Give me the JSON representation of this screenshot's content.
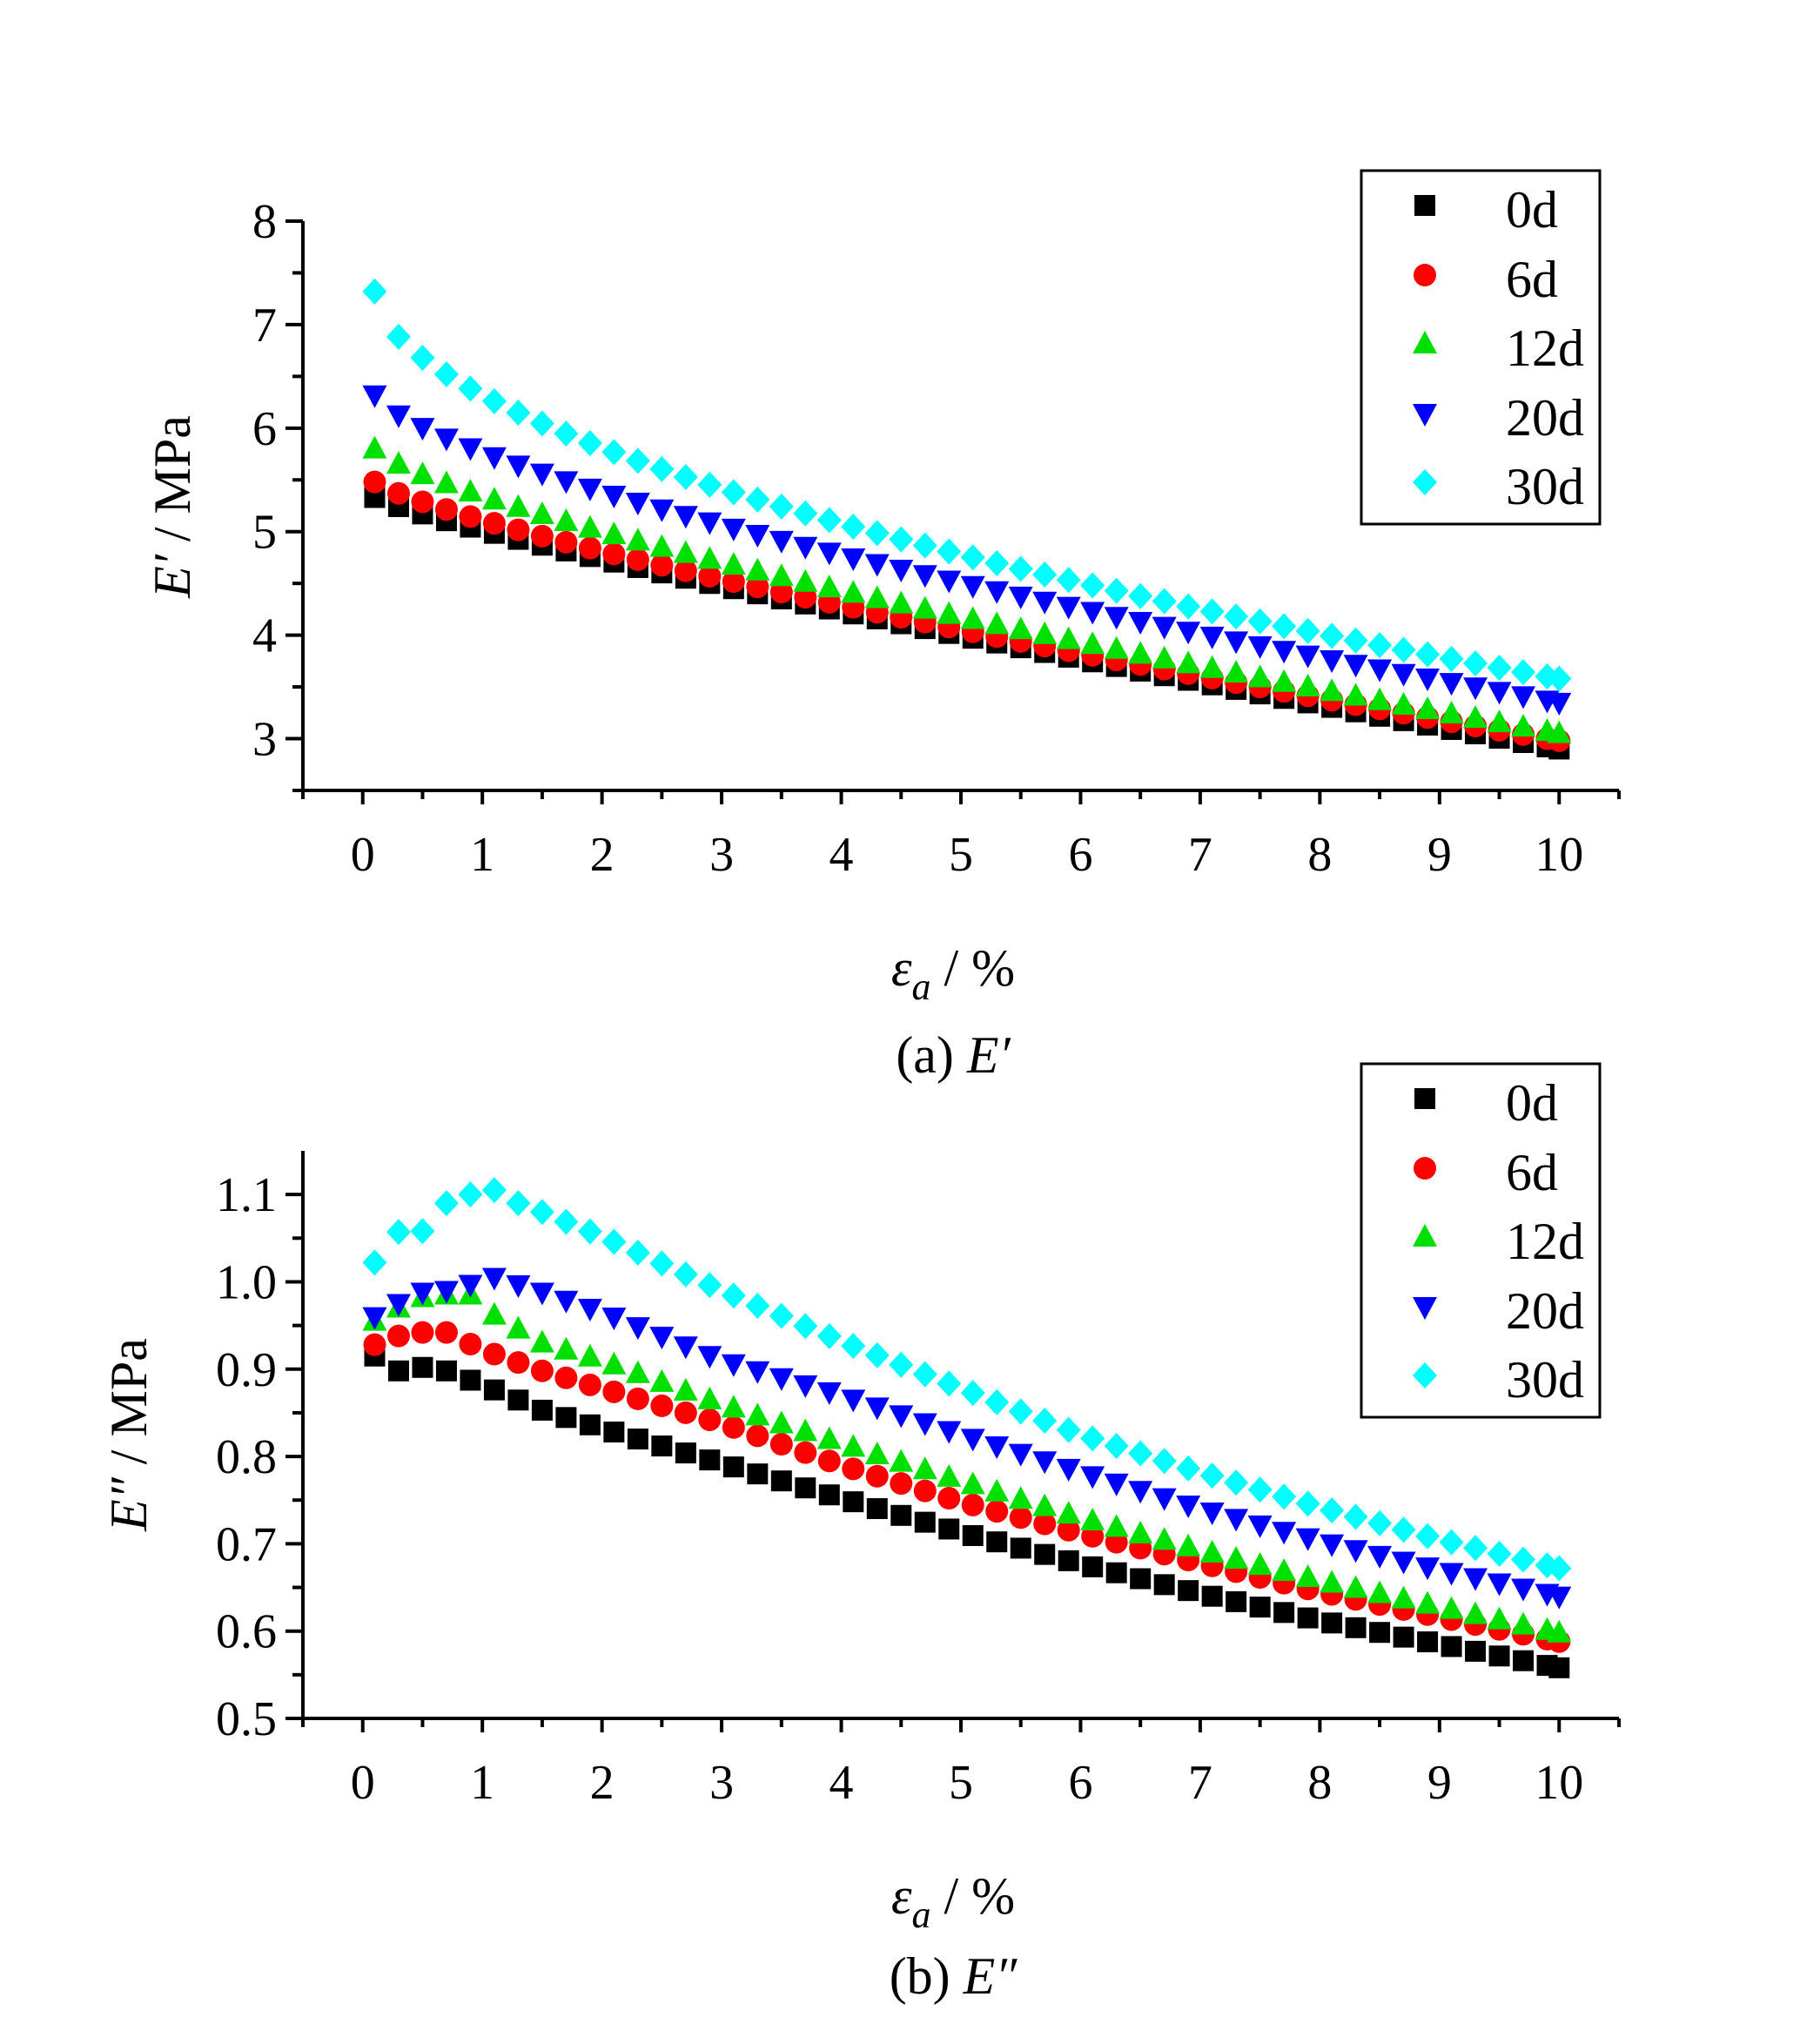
{
  "colors": {
    "0d": "#000000",
    "6d": "#ff0000",
    "12d": "#00e000",
    "20d": "#0000ff",
    "30d": "#00ffff"
  },
  "chart_data": [
    {
      "type": "scatter",
      "caption_prefix": "(a) ",
      "caption_symbol": "E′",
      "xlabel": {
        "symbol": "ε",
        "sub": "a",
        "unit": " / %"
      },
      "ylabel": {
        "symbol": "E′",
        "unit": " / MPa"
      },
      "xlim": [
        -0.5,
        10.5
      ],
      "ylim": [
        2.5,
        8
      ],
      "xticks": [
        0,
        1,
        2,
        3,
        4,
        5,
        6,
        7,
        8,
        9,
        10
      ],
      "yticks": [
        3,
        4,
        5,
        6,
        7,
        8
      ],
      "ytick_labels": [
        "3",
        "4",
        "5",
        "6",
        "7",
        "8"
      ],
      "legend_position": "top-right",
      "x": [
        0.1,
        0.3,
        0.5,
        0.7,
        0.9,
        1.1,
        1.3,
        1.5,
        1.7,
        1.9,
        2.1,
        2.3,
        2.5,
        2.7,
        2.9,
        3.1,
        3.3,
        3.5,
        3.7,
        3.9,
        4.1,
        4.3,
        4.5,
        4.7,
        4.9,
        5.1,
        5.3,
        5.5,
        5.7,
        5.9,
        6.1,
        6.3,
        6.5,
        6.7,
        6.9,
        7.1,
        7.3,
        7.5,
        7.7,
        7.9,
        8.1,
        8.3,
        8.5,
        8.7,
        8.9,
        9.1,
        9.3,
        9.5,
        9.7,
        9.9,
        10.0
      ],
      "series": [
        {
          "name": "0d",
          "marker": "square",
          "start": 5.33,
          "end": 2.9,
          "curve": 0.85
        },
        {
          "name": "6d",
          "marker": "circle",
          "start": 5.48,
          "end": 2.98,
          "curve": 0.8
        },
        {
          "name": "12d",
          "marker": "triangle-up",
          "start": 5.8,
          "end": 3.05,
          "curve": 0.75
        },
        {
          "name": "20d",
          "marker": "triangle-down",
          "start": 6.32,
          "end": 3.35,
          "curve": 0.7
        },
        {
          "name": "30d",
          "marker": "diamond",
          "start": 7.32,
          "end": 3.58,
          "curve": 0.55
        }
      ]
    },
    {
      "type": "scatter",
      "caption_prefix": "(b) ",
      "caption_symbol": "E″",
      "xlabel": {
        "symbol": "ε",
        "sub": "a",
        "unit": " / %"
      },
      "ylabel": {
        "symbol": "E″",
        "unit": " / MPa"
      },
      "xlim": [
        -0.5,
        10.5
      ],
      "ylim": [
        0.5,
        1.15
      ],
      "xticks": [
        0,
        1,
        2,
        3,
        4,
        5,
        6,
        7,
        8,
        9,
        10
      ],
      "yticks": [
        0.5,
        0.6,
        0.7,
        0.8,
        0.9,
        1.0,
        1.1
      ],
      "ytick_labels": [
        "0.5",
        "0.6",
        "0.7",
        "0.8",
        "0.9",
        "1.0",
        "1.1"
      ],
      "legend_position": "top-right",
      "x": [
        0.1,
        0.3,
        0.5,
        0.7,
        0.9,
        1.1,
        1.3,
        1.5,
        1.7,
        1.9,
        2.1,
        2.3,
        2.5,
        2.7,
        2.9,
        3.1,
        3.3,
        3.5,
        3.7,
        3.9,
        4.1,
        4.3,
        4.5,
        4.7,
        4.9,
        5.1,
        5.3,
        5.5,
        5.7,
        5.9,
        6.1,
        6.3,
        6.5,
        6.7,
        6.9,
        7.1,
        7.3,
        7.5,
        7.7,
        7.9,
        8.1,
        8.3,
        8.5,
        8.7,
        8.9,
        9.1,
        9.3,
        9.5,
        9.7,
        9.9,
        10.0
      ],
      "series": [
        {
          "name": "0d",
          "marker": "square",
          "knots_x": [
            0.1,
            0.3,
            0.5,
            0.7,
            1.0,
            1.5,
            2.0,
            3.0,
            4.0,
            5.0,
            6.0,
            7.0,
            8.0,
            9.0,
            10.0
          ],
          "knots_y": [
            0.915,
            0.898,
            0.902,
            0.898,
            0.882,
            0.853,
            0.832,
            0.792,
            0.752,
            0.713,
            0.677,
            0.643,
            0.612,
            0.585,
            0.558
          ]
        },
        {
          "name": "6d",
          "marker": "circle",
          "knots_x": [
            0.1,
            0.3,
            0.5,
            0.7,
            1.0,
            1.5,
            2.0,
            3.0,
            4.0,
            5.0,
            6.0,
            7.0,
            8.0,
            9.0,
            10.0
          ],
          "knots_y": [
            0.928,
            0.938,
            0.942,
            0.942,
            0.922,
            0.898,
            0.878,
            0.838,
            0.79,
            0.748,
            0.712,
            0.678,
            0.645,
            0.616,
            0.588
          ]
        },
        {
          "name": "12d",
          "marker": "triangle-up",
          "knots_x": [
            0.1,
            0.3,
            0.5,
            0.7,
            0.9,
            1.1,
            1.5,
            2.0,
            3.0,
            4.0,
            5.0,
            6.0,
            7.0,
            8.0,
            9.0,
            10.0
          ],
          "knots_y": [
            0.955,
            0.97,
            0.982,
            0.985,
            0.985,
            0.962,
            0.93,
            0.91,
            0.86,
            0.815,
            0.772,
            0.73,
            0.693,
            0.658,
            0.628,
            0.598
          ]
        },
        {
          "name": "20d",
          "marker": "triangle-down",
          "knots_x": [
            0.1,
            0.3,
            0.5,
            0.7,
            0.9,
            1.1,
            1.5,
            2.0,
            3.0,
            4.0,
            5.0,
            6.0,
            7.0,
            8.0,
            9.0,
            10.0
          ],
          "knots_y": [
            0.96,
            0.975,
            0.988,
            0.99,
            0.997,
            1.005,
            0.988,
            0.965,
            0.91,
            0.87,
            0.825,
            0.782,
            0.74,
            0.703,
            0.67,
            0.64
          ]
        },
        {
          "name": "30d",
          "marker": "diamond",
          "knots_x": [
            0.1,
            0.3,
            0.5,
            0.7,
            0.9,
            1.1,
            1.3,
            1.5,
            2.0,
            3.0,
            4.0,
            5.0,
            6.0,
            7.0,
            8.0,
            9.0,
            10.0
          ],
          "knots_y": [
            1.022,
            1.057,
            1.058,
            1.09,
            1.1,
            1.105,
            1.09,
            1.08,
            1.052,
            0.99,
            0.932,
            0.878,
            0.825,
            0.782,
            0.742,
            0.705,
            0.672
          ]
        }
      ]
    }
  ]
}
